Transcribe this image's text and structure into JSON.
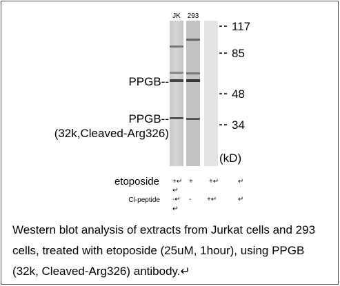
{
  "lanes": [
    "JK",
    "293"
  ],
  "markers": [
    "117",
    "85",
    "48",
    "34"
  ],
  "unit": "(kD)",
  "band_labels": [
    "PPGB--",
    "PPGB--",
    "(32k,Cleaved-Arg326)"
  ],
  "treatments": [
    {
      "name": "etoposide",
      "signs": [
        "+↵",
        "↵",
        "+",
        "+↵",
        "↵"
      ]
    },
    {
      "name": "Cl-peptide",
      "signs": [
        "-↵",
        "↵",
        "-",
        "+↵",
        "↵"
      ]
    }
  ],
  "caption": [
    "Western blot analysis of extracts from Jurkat cells and 293",
    "cells, treated with etoposide (25uM, 1hour), using PPGB",
    "(32k, Cleaved-Arg326) antibody.↵"
  ]
}
